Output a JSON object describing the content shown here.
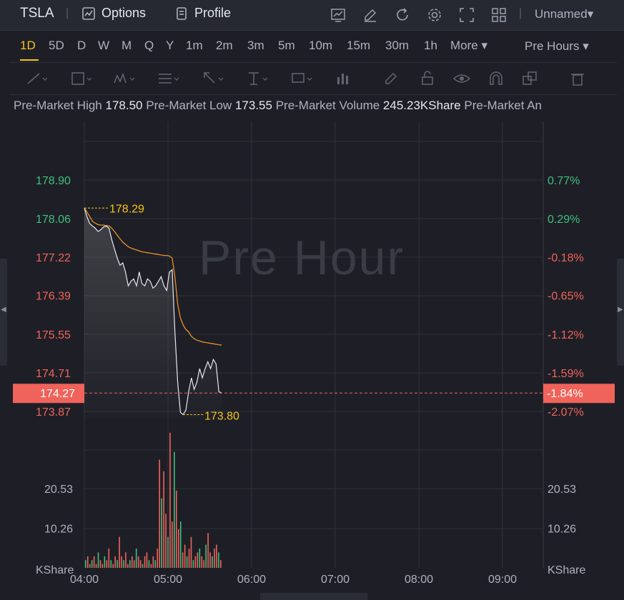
{
  "toolbar": {
    "ticker": "TSLA",
    "options_label": "Options",
    "profile_label": "Profile",
    "layout_name": "Unnamed",
    "icons": [
      "indicator-icon",
      "draw-icon",
      "refresh-icon",
      "settings-icon",
      "fullscreen-icon",
      "grid-layout-icon"
    ]
  },
  "periods": [
    "1D",
    "5D",
    "D",
    "W",
    "M",
    "Q",
    "Y",
    "1m",
    "2m",
    "3m",
    "5m",
    "10m",
    "15m",
    "30m",
    "1h"
  ],
  "more_label": "More",
  "active_period": "1D",
  "session_label": "Pre Hours",
  "stats": {
    "high_label": "Pre-Market High",
    "high_value": "178.50",
    "low_label": "Pre-Market Low",
    "low_value": "173.55",
    "volume_label": "Pre-Market Volume",
    "volume_value": "245.23KShare",
    "truncated_label": "Pre-Market An"
  },
  "watermark": "Pre Hour",
  "chart_data": {
    "type": "line",
    "x_ticks": [
      "04:00",
      "05:00",
      "06:00",
      "07:00",
      "08:00",
      "09:00"
    ],
    "price_ticks": [
      "178.90",
      "178.06",
      "177.22",
      "176.39",
      "175.55",
      "174.71",
      "173.87"
    ],
    "price_tick_colors": [
      "#3fbf7f",
      "#3fbf7f",
      "#f0635a",
      "#f0635a",
      "#f0635a",
      "#f0635a",
      "#f0635a"
    ],
    "pct_ticks": [
      "0.77%",
      "0.29%",
      "-0.18%",
      "-0.65%",
      "-1.12%",
      "-1.59%",
      "-2.07%"
    ],
    "pct_tick_colors": [
      "#3fbf7f",
      "#3fbf7f",
      "#f0635a",
      "#f0635a",
      "#f0635a",
      "#f0635a",
      "#f0635a"
    ],
    "current_price": "174.27",
    "current_pct": "-1.84%",
    "max_label": "178.29",
    "min_label": "173.80",
    "volume_ticks": [
      "20.53",
      "10.26"
    ],
    "volume_unit": "KShare",
    "colors": {
      "up": "#3fbf7f",
      "down": "#f0635a",
      "price_line": "#e6e8ef",
      "avg_line": "#e8902c",
      "annotation": "#f5c518"
    },
    "price_series": [
      178.29,
      178.1,
      177.95,
      177.9,
      177.85,
      177.78,
      177.82,
      177.88,
      177.9,
      177.85,
      177.6,
      177.4,
      177.2,
      177.05,
      177.1,
      176.9,
      176.6,
      176.7,
      176.75,
      176.6,
      176.9,
      176.65,
      176.6,
      176.75,
      176.7,
      176.55,
      176.6,
      176.7,
      176.8,
      176.6,
      176.5,
      176.9,
      176.95,
      175.6,
      174.5,
      173.85,
      173.8,
      173.9,
      174.3,
      174.6,
      174.35,
      174.5,
      174.8,
      174.6,
      174.8,
      174.95,
      174.8,
      175.0,
      174.9,
      174.3,
      174.27
    ],
    "avg_series": [
      178.29,
      178.2,
      178.1,
      178.0,
      177.96,
      177.93,
      177.92,
      177.92,
      177.91,
      177.9,
      177.85,
      177.78,
      177.7,
      177.62,
      177.55,
      177.5,
      177.45,
      177.42,
      177.4,
      177.38,
      177.36,
      177.34,
      177.33,
      177.32,
      177.31,
      177.3,
      177.29,
      177.28,
      177.27,
      177.26,
      177.26,
      177.25,
      177.2,
      176.8,
      176.2,
      175.9,
      175.75,
      175.65,
      175.6,
      175.5,
      175.45,
      175.42,
      175.4,
      175.38,
      175.37,
      175.36,
      175.35,
      175.34,
      175.33,
      175.32,
      175.31
    ],
    "volume_series": [
      2,
      3,
      1,
      2,
      3,
      1,
      4,
      2,
      1,
      3,
      2,
      5,
      2,
      1,
      3,
      2,
      8,
      3,
      2,
      4,
      1,
      2,
      3,
      2,
      5,
      3,
      2,
      1,
      3,
      4,
      2,
      1,
      3,
      2,
      5,
      28,
      18,
      25,
      14,
      8,
      35,
      12,
      30,
      20,
      10,
      12,
      4,
      6,
      3,
      5,
      8,
      2,
      3,
      4,
      5,
      3,
      2,
      6,
      9,
      4,
      3,
      5,
      6,
      4,
      2
    ]
  }
}
